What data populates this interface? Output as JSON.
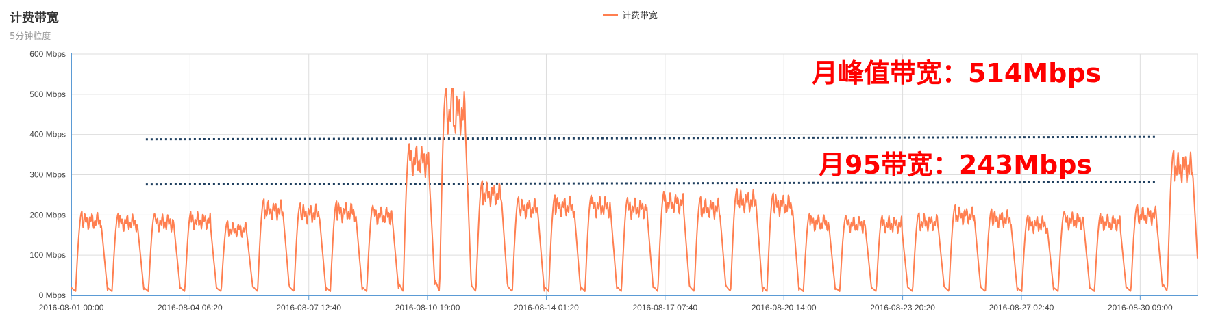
{
  "title": "计费带宽",
  "subtitle": "5分钟粒度",
  "legend": {
    "label": "计费带宽"
  },
  "annotations": {
    "peak": "月峰值带宽：514Mbps",
    "p95": "月95带宽：243Mbps"
  },
  "colors": {
    "series": "#ff7f50",
    "dotted": "#1f3f5f",
    "annotation": "#ff0000",
    "axis": "#5b9bd5"
  },
  "chart_data": {
    "type": "line",
    "y_ticks": [
      "0 Mbps",
      "100 Mbps",
      "200 Mbps",
      "300 Mbps",
      "400 Mbps",
      "500 Mbps",
      "600 Mbps"
    ],
    "ylim": [
      0,
      600
    ],
    "y_unit": "Mbps",
    "x_ticks": [
      "2016-08-01 00:00",
      "2016-08-04 06:20",
      "2016-08-07 12:40",
      "2016-08-10 19:00",
      "2016-08-14 01:20",
      "2016-08-17 07:40",
      "2016-08-20 14:00",
      "2016-08-23 20:20",
      "2016-08-27 02:40",
      "2016-08-30 09:00"
    ],
    "x_range_days": [
      0,
      30.95
    ],
    "grid": true,
    "legend_placement": "top-center",
    "series": [
      {
        "name": "计费带宽",
        "daily_peaks": [
          210,
          205,
          205,
          210,
          185,
          240,
          230,
          235,
          225,
          380,
          514,
          285,
          245,
          250,
          250,
          245,
          260,
          245,
          265,
          255,
          205,
          200,
          200,
          205,
          225,
          215,
          200,
          210,
          205,
          225,
          360
        ],
        "daily_trough": 10
      }
    ],
    "reference_lines": [
      {
        "value": 388,
        "style": "dotted"
      },
      {
        "value": 276,
        "style": "dotted"
      }
    ],
    "peak_value": 514,
    "p95_value": 243
  }
}
